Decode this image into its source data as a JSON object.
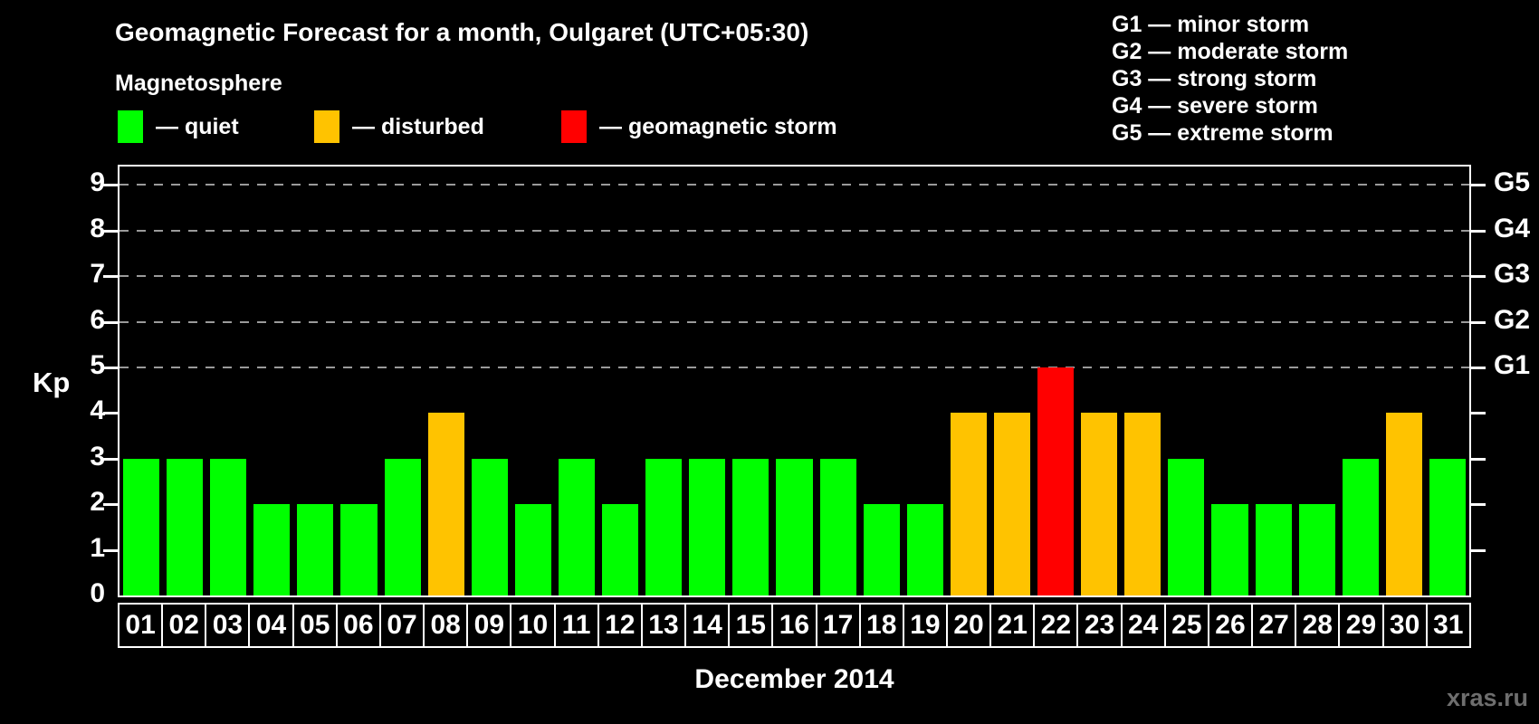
{
  "title": "Geomagnetic Forecast for a month, Oulgaret (UTC+05:30)",
  "magnetosphere_label": "Magnetosphere",
  "legend": {
    "dash": "—",
    "items": [
      {
        "label": "quiet",
        "status": "quiet",
        "color": "#00ff00"
      },
      {
        "label": "disturbed",
        "status": "disturbed",
        "color": "#ffc300"
      },
      {
        "label": "geomagnetic storm",
        "status": "storm",
        "color": "#ff0000"
      }
    ]
  },
  "storm_scale": {
    "dash": "—",
    "items": [
      {
        "code": "G1",
        "label": "minor storm"
      },
      {
        "code": "G2",
        "label": "moderate storm"
      },
      {
        "code": "G3",
        "label": "strong storm"
      },
      {
        "code": "G4",
        "label": "severe storm"
      },
      {
        "code": "G5",
        "label": "extreme storm"
      }
    ]
  },
  "chart_data": {
    "type": "bar",
    "title": "Geomagnetic Forecast for a month, Oulgaret (UTC+05:30)",
    "xlabel": "December 2014",
    "ylabel": "Kp",
    "ylim": [
      0,
      9.4
    ],
    "grid": "horizontal dashed gray lines at Kp 5,6,7,8,9",
    "categories": [
      "01",
      "02",
      "03",
      "04",
      "05",
      "06",
      "07",
      "08",
      "09",
      "10",
      "11",
      "12",
      "13",
      "14",
      "15",
      "16",
      "17",
      "18",
      "19",
      "20",
      "21",
      "22",
      "23",
      "24",
      "25",
      "26",
      "27",
      "28",
      "29",
      "30",
      "31"
    ],
    "values": [
      3,
      3,
      3,
      2,
      2,
      2,
      3,
      4,
      3,
      2,
      3,
      2,
      3,
      3,
      3,
      3,
      3,
      2,
      2,
      4,
      4,
      5,
      4,
      4,
      3,
      2,
      2,
      2,
      3,
      4,
      3
    ],
    "statuses": [
      "quiet",
      "quiet",
      "quiet",
      "quiet",
      "quiet",
      "quiet",
      "quiet",
      "disturbed",
      "quiet",
      "quiet",
      "quiet",
      "quiet",
      "quiet",
      "quiet",
      "quiet",
      "quiet",
      "quiet",
      "quiet",
      "quiet",
      "disturbed",
      "disturbed",
      "storm",
      "disturbed",
      "disturbed",
      "quiet",
      "quiet",
      "quiet",
      "quiet",
      "quiet",
      "disturbed",
      "quiet"
    ],
    "status_colors": {
      "quiet": "#00ff00",
      "disturbed": "#ffc300",
      "storm": "#ff0000"
    },
    "y_ticks": [
      0,
      1,
      2,
      3,
      4,
      5,
      6,
      7,
      8,
      9
    ],
    "right_axis": [
      {
        "kp": 5,
        "label": "G1"
      },
      {
        "kp": 6,
        "label": "G2"
      },
      {
        "kp": 7,
        "label": "G3"
      },
      {
        "kp": 8,
        "label": "G4"
      },
      {
        "kp": 9,
        "label": "G5"
      }
    ]
  },
  "footer": {
    "month_label": "December 2014",
    "watermark": "xras.ru"
  }
}
